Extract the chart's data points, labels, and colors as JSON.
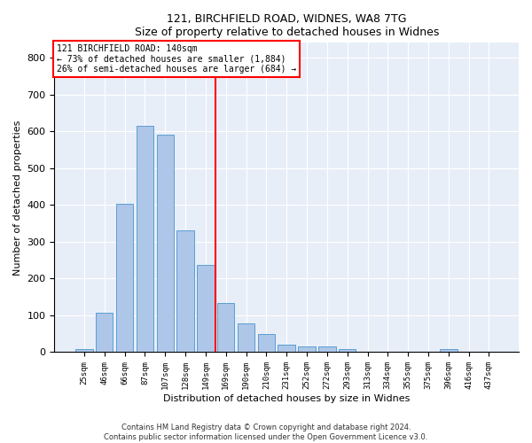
{
  "title": "121, BIRCHFIELD ROAD, WIDNES, WA8 7TG",
  "subtitle": "Size of property relative to detached houses in Widnes",
  "xlabel": "Distribution of detached houses by size in Widnes",
  "ylabel": "Number of detached properties",
  "footer_line1": "Contains HM Land Registry data © Crown copyright and database right 2024.",
  "footer_line2": "Contains public sector information licensed under the Open Government Licence v3.0.",
  "categories": [
    "25sqm",
    "46sqm",
    "66sqm",
    "87sqm",
    "107sqm",
    "128sqm",
    "149sqm",
    "169sqm",
    "190sqm",
    "210sqm",
    "231sqm",
    "252sqm",
    "272sqm",
    "293sqm",
    "313sqm",
    "334sqm",
    "355sqm",
    "375sqm",
    "396sqm",
    "416sqm",
    "437sqm"
  ],
  "values": [
    8,
    107,
    403,
    614,
    591,
    330,
    238,
    133,
    77,
    50,
    20,
    15,
    15,
    8,
    0,
    0,
    0,
    0,
    8,
    0,
    0
  ],
  "bar_color": "#aec6e8",
  "bar_edge_color": "#5a9fd4",
  "background_color": "#e8eef8",
  "vline_color": "red",
  "vline_index": 6.5,
  "annotation_text": "121 BIRCHFIELD ROAD: 140sqm\n← 73% of detached houses are smaller (1,884)\n26% of semi-detached houses are larger (684) →",
  "annotation_box_color": "red",
  "ylim": [
    0,
    840
  ],
  "yticks": [
    0,
    100,
    200,
    300,
    400,
    500,
    600,
    700,
    800
  ]
}
